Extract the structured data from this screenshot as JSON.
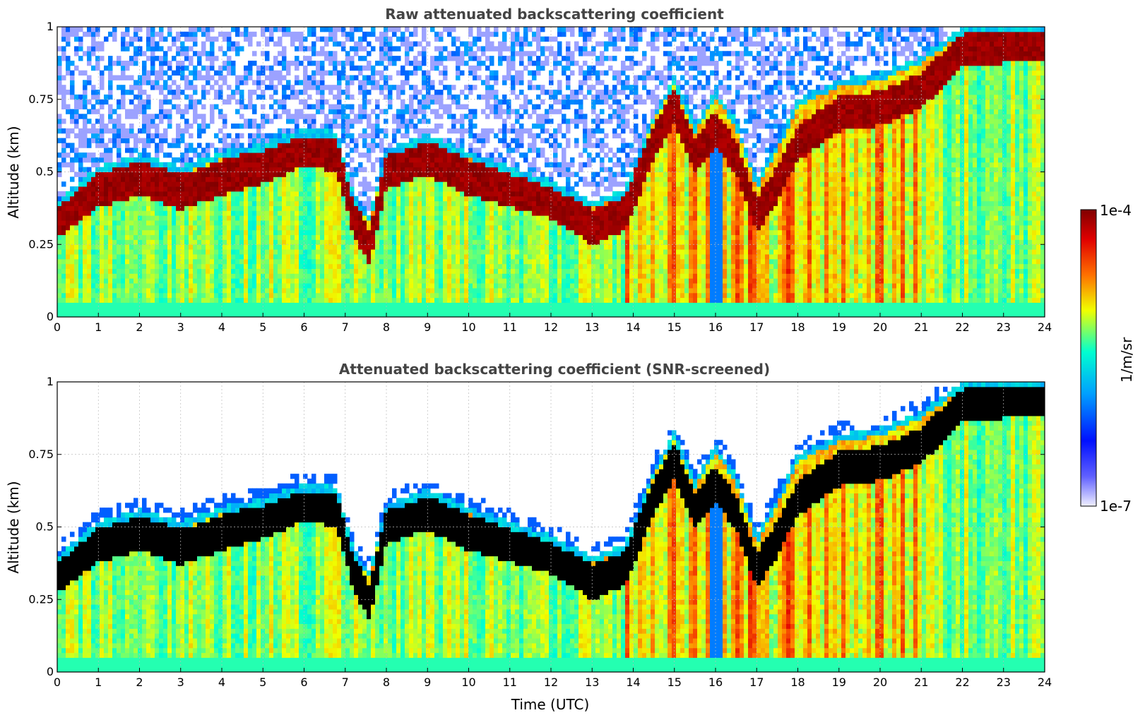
{
  "chart_data": [
    {
      "type": "heatmap",
      "title": "Raw attenuated backscattering coefficient",
      "xlabel": "",
      "ylabel": "Altitude (km)",
      "xlim": [
        0,
        24
      ],
      "ylim": [
        0,
        1
      ],
      "x_ticks": [
        "0",
        "1",
        "2",
        "3",
        "4",
        "5",
        "6",
        "7",
        "8",
        "9",
        "10",
        "11",
        "12",
        "13",
        "14",
        "15",
        "16",
        "17",
        "18",
        "19",
        "20",
        "21",
        "22",
        "23",
        "24"
      ],
      "y_ticks": [
        "0",
        "0.25",
        "0.5",
        "0.75",
        "1"
      ],
      "grid": true,
      "screened": false,
      "layer_top_km": [
        [
          0,
          0.4
        ],
        [
          1,
          0.52
        ],
        [
          2,
          0.56
        ],
        [
          3,
          0.52
        ],
        [
          4,
          0.57
        ],
        [
          5,
          0.6
        ],
        [
          6,
          0.65
        ],
        [
          6.8,
          0.64
        ],
        [
          7.2,
          0.42
        ],
        [
          7.6,
          0.35
        ],
        [
          8,
          0.58
        ],
        [
          9,
          0.63
        ],
        [
          10,
          0.57
        ],
        [
          11,
          0.52
        ],
        [
          12,
          0.47
        ],
        [
          13,
          0.4
        ],
        [
          13.8,
          0.44
        ],
        [
          14.5,
          0.7
        ],
        [
          15,
          0.83
        ],
        [
          15.5,
          0.66
        ],
        [
          16,
          0.78
        ],
        [
          16.5,
          0.68
        ],
        [
          17,
          0.47
        ],
        [
          17.5,
          0.6
        ],
        [
          18,
          0.75
        ],
        [
          19,
          0.82
        ],
        [
          20,
          0.84
        ],
        [
          21,
          0.9
        ],
        [
          22,
          1.0
        ],
        [
          24,
          1.0
        ]
      ],
      "layer_peak_km": [
        [
          0,
          0.33
        ],
        [
          1,
          0.44
        ],
        [
          2,
          0.48
        ],
        [
          3,
          0.43
        ],
        [
          4,
          0.48
        ],
        [
          5,
          0.52
        ],
        [
          6,
          0.58
        ],
        [
          6.8,
          0.56
        ],
        [
          7.2,
          0.34
        ],
        [
          7.6,
          0.24
        ],
        [
          8,
          0.5
        ],
        [
          9,
          0.55
        ],
        [
          10,
          0.48
        ],
        [
          11,
          0.44
        ],
        [
          12,
          0.4
        ],
        [
          13,
          0.31
        ],
        [
          13.8,
          0.36
        ],
        [
          14.5,
          0.6
        ],
        [
          15,
          0.73
        ],
        [
          15.5,
          0.56
        ],
        [
          16,
          0.65
        ],
        [
          16.5,
          0.55
        ],
        [
          17,
          0.35
        ],
        [
          17.5,
          0.46
        ],
        [
          18,
          0.6
        ],
        [
          19,
          0.7
        ],
        [
          20,
          0.72
        ],
        [
          21,
          0.78
        ],
        [
          22,
          0.92
        ],
        [
          24,
          0.95
        ]
      ]
    },
    {
      "type": "heatmap",
      "title": "Attenuated backscattering coefficient (SNR-screened)",
      "xlabel": "Time (UTC)",
      "ylabel": "Altitude (km)",
      "xlim": [
        0,
        24
      ],
      "ylim": [
        0,
        1
      ],
      "x_ticks": [
        "0",
        "1",
        "2",
        "3",
        "4",
        "5",
        "6",
        "7",
        "8",
        "9",
        "10",
        "11",
        "12",
        "13",
        "14",
        "15",
        "16",
        "17",
        "18",
        "19",
        "20",
        "21",
        "22",
        "23",
        "24"
      ],
      "y_ticks": [
        "0",
        "0.25",
        "0.5",
        "0.75",
        "1"
      ],
      "grid": true,
      "screened": true
    }
  ],
  "colorbar": {
    "label": "1/m/sr",
    "max_label": "1e-4",
    "min_label": "1e-7",
    "colormap": [
      "#f0f0ff",
      "#0010ff",
      "#00a0ff",
      "#00ffd0",
      "#f0ff00",
      "#ff7000",
      "#e00000",
      "#800000"
    ]
  }
}
